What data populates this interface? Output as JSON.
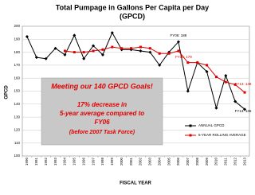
{
  "chart_data": {
    "type": "line",
    "title": "Total Pumpage in Gallons Per Capita per Day",
    "subtitle": "(GPCD)",
    "y_label": "GPCD",
    "x_label": "FISCAL YEAR",
    "categories": [
      "1990",
      "1991",
      "1992",
      "1993",
      "1994",
      "1995",
      "1996",
      "1997",
      "1998",
      "1999",
      "2000",
      "2001",
      "2002",
      "2003",
      "2004",
      "2005",
      "2006",
      "2007",
      "2008",
      "2009",
      "2010",
      "2011",
      "2012",
      "2013"
    ],
    "series": [
      {
        "name": "ANNUAL GPCD",
        "color": "#000000",
        "values": [
          192,
          176,
          175,
          183,
          178,
          193,
          175,
          185,
          178,
          195,
          182,
          182,
          181,
          180,
          170,
          180,
          188,
          150,
          172,
          165,
          137,
          162,
          142,
          136
        ]
      },
      {
        "name": "5-YEAR ROLLING AVERAGE",
        "color": "#e00000",
        "values": [
          null,
          null,
          null,
          null,
          181,
          180,
          180,
          181,
          182,
          184,
          183,
          183,
          184,
          183,
          179,
          179,
          181,
          172,
          172,
          170,
          161,
          157,
          155,
          149
        ]
      }
    ],
    "ylim": [
      100,
      200
    ],
    "yticks": [
      100,
      110,
      120,
      130,
      140,
      150,
      160,
      170,
      180,
      190,
      200
    ],
    "grid": true,
    "annotations": [
      "FY06: 188",
      "FY05: 179",
      "FY13: 149",
      "FY13: 136"
    ],
    "callout": [
      "Meeting our 140 GPCD Goals!",
      "17% decrease in",
      "5-year average compared to",
      "FY06",
      "(before 2007 Task Force)"
    ]
  }
}
